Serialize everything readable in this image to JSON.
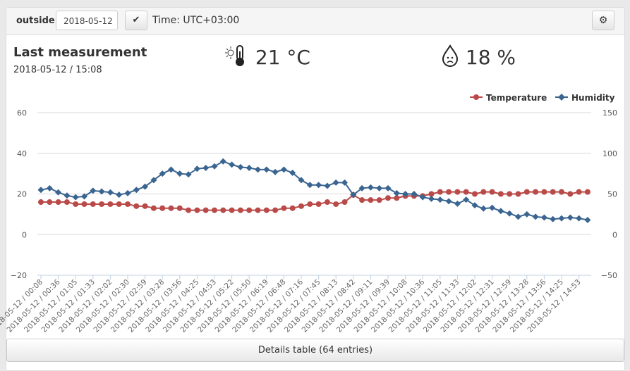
{
  "toolbar": {
    "location": "outside",
    "date": "2018-05-12",
    "timezone": "Time: UTC+03:00",
    "confirm_icon": "checkmark-icon",
    "settings_icon": "gear-icon"
  },
  "last": {
    "title": "Last measurement",
    "timestamp": "2018-05-12 / 15:08",
    "temperature": "21 °C",
    "humidity": "18 %",
    "temp_icon": "sun-thermometer-icon",
    "hum_icon": "sad-droplet-icon"
  },
  "details_button": "Details table (64 entries)",
  "chart_data": {
    "type": "line",
    "colors": {
      "Temperature": "#b94a48",
      "Humidity": "#3a6590"
    },
    "legend": [
      "Temperature",
      "Humidity"
    ],
    "legend_position": "top-right",
    "y_left": {
      "ticks": [
        "60",
        "40",
        "20",
        "0",
        "−20"
      ],
      "range": [
        -20,
        60
      ]
    },
    "y_right": {
      "ticks": [
        "150",
        "100",
        "50",
        "0",
        "−50"
      ],
      "range": [
        -50,
        150
      ]
    },
    "xlabels": [
      "2018-05-12 / 00:08",
      "2018-05-12 / 00:36",
      "2018-05-12 / 01:05",
      "2018-05-12 / 01:33",
      "2018-05-12 / 02:02",
      "2018-05-12 / 02:30",
      "2018-05-12 / 02:59",
      "2018-05-12 / 03:28",
      "2018-05-12 / 03:56",
      "2018-05-12 / 04:25",
      "2018-05-12 / 04:53",
      "2018-05-12 / 05:22",
      "2018-05-12 / 05:50",
      "2018-05-12 / 06:19",
      "2018-05-12 / 06:48",
      "2018-05-12 / 07:16",
      "2018-05-12 / 07:45",
      "2018-05-12 / 08:13",
      "2018-05-12 / 08:42",
      "2018-05-12 / 09:11",
      "2018-05-12 / 09:39",
      "2018-05-12 / 10:08",
      "2018-05-12 / 10:36",
      "2018-05-12 / 11:05",
      "2018-05-12 / 11:33",
      "2018-05-12 / 12:02",
      "2018-05-12 / 12:31",
      "2018-05-12 / 12:59",
      "2018-05-12 / 13:28",
      "2018-05-12 / 13:56",
      "2018-05-12 / 14:25",
      "2018-05-12 / 14:53"
    ],
    "series": [
      {
        "name": "Temperature",
        "axis": "left",
        "values": [
          16,
          16,
          16,
          16,
          15,
          15,
          15,
          15,
          15,
          15,
          15,
          14,
          14,
          13,
          13,
          13,
          13,
          12,
          12,
          12,
          12,
          12,
          12,
          12,
          12,
          12,
          12,
          12,
          13,
          13,
          14,
          15,
          15,
          16,
          15,
          16,
          19.5,
          17,
          17,
          17,
          18,
          18,
          19,
          19,
          19,
          20,
          21,
          21,
          21,
          21,
          20,
          21,
          21,
          20,
          20,
          20,
          21,
          21,
          21,
          21,
          21,
          20,
          21,
          21
        ]
      },
      {
        "name": "Humidity",
        "axis": "right",
        "values": [
          55,
          57,
          52,
          48,
          46,
          47,
          54,
          53,
          52,
          49,
          51,
          55,
          59,
          67,
          75,
          80,
          75,
          74,
          81,
          82,
          84,
          90,
          86,
          83,
          82,
          80,
          80,
          77,
          80,
          76,
          67,
          61,
          61,
          60,
          64,
          64,
          49,
          57,
          58,
          57,
          57,
          51,
          50,
          50,
          46,
          44,
          43,
          41,
          38,
          43,
          36,
          32,
          33,
          29,
          26,
          22,
          25,
          22,
          21,
          19,
          20,
          21,
          20,
          18
        ]
      }
    ]
  }
}
